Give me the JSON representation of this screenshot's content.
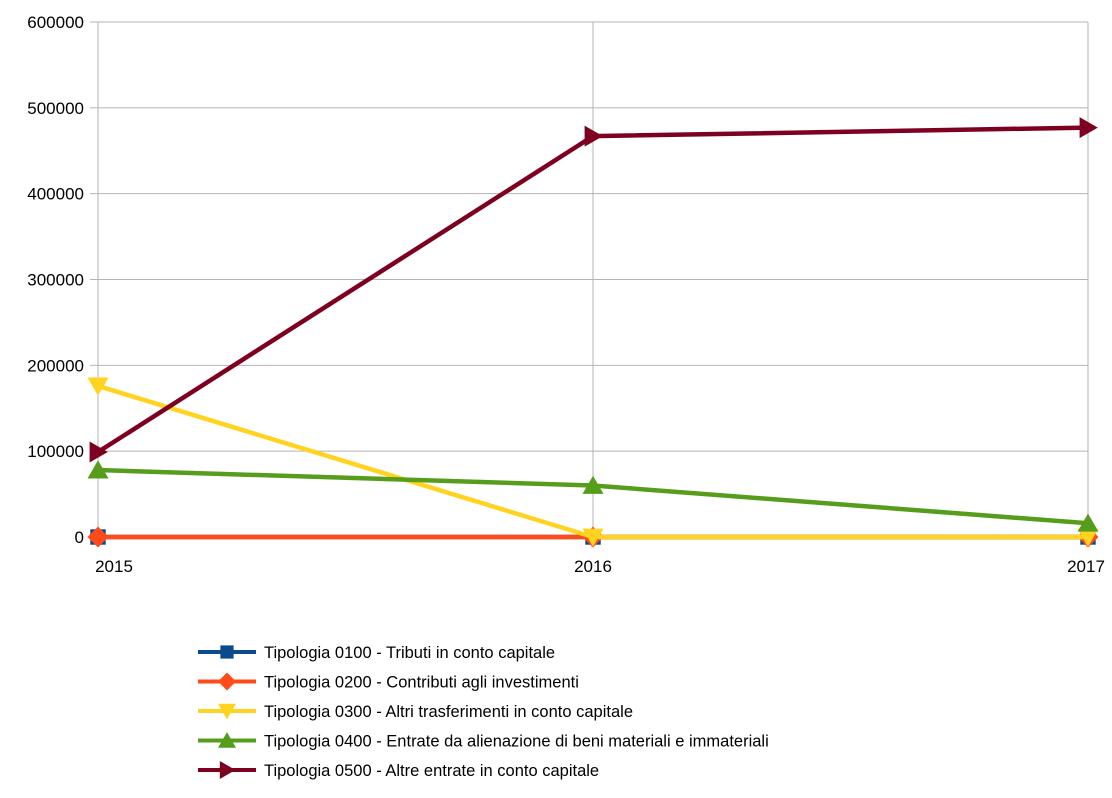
{
  "chart_data": {
    "type": "line",
    "title": "",
    "xlabel": "",
    "ylabel": "",
    "categories": [
      "2015",
      "2016",
      "2017"
    ],
    "ylim": [
      0,
      600000
    ],
    "yticks": [
      0,
      100000,
      200000,
      300000,
      400000,
      500000,
      600000
    ],
    "ytick_labels": [
      "0",
      "100000",
      "200000",
      "300000",
      "400000",
      "500000",
      "600000"
    ],
    "grid": "horizontal",
    "legend_position": "bottom",
    "series": [
      {
        "name": "Tipologia 0100 - Tributi in conto capitale",
        "values": [
          0,
          0,
          0
        ],
        "color": "#0b4a8b",
        "marker": "square"
      },
      {
        "name": "Tipologia 0200 - Contributi agli investimenti",
        "values": [
          0,
          0,
          0
        ],
        "color": "#ff4a1a",
        "marker": "diamond"
      },
      {
        "name": "Tipologia 0300 - Altri trasferimenti in conto capitale",
        "values": [
          176000,
          0,
          0
        ],
        "color": "#ffd320",
        "marker": "triangle-down"
      },
      {
        "name": "Tipologia 0400 - Entrate da alienazione di beni materiali e immateriali",
        "values": [
          78000,
          60000,
          16000
        ],
        "color": "#579d1c",
        "marker": "triangle-up"
      },
      {
        "name": "Tipologia 0500 - Altre entrate in conto capitale",
        "values": [
          99000,
          467000,
          477000
        ],
        "color": "#7e0021",
        "marker": "triangle-right"
      }
    ]
  }
}
